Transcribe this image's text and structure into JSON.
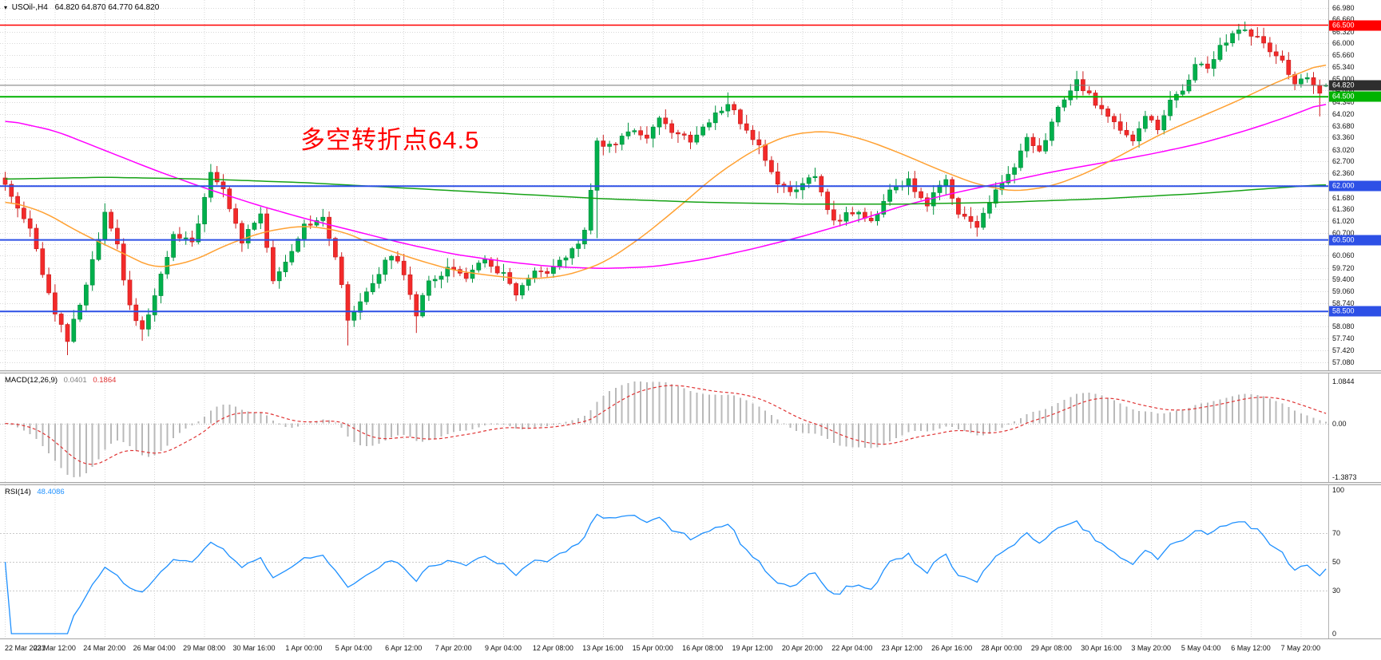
{
  "header": {
    "marker": "▾",
    "title": "USOil-,H4",
    "ohlc": "64.820 64.870 64.770 64.820"
  },
  "annotation": {
    "text": "多空转折点64.5",
    "color": "#ff0000"
  },
  "colors": {
    "background": "#ffffff",
    "grid": "#d8d8d8",
    "axis_border": "#b2b2b2",
    "text": "#111111",
    "candle_up": "#00b04c",
    "candle_up_border": "#00913e",
    "candle_down": "#f32a2a",
    "candle_down_border": "#cc1f1f",
    "macd_hist": "#b9b9b9",
    "macd_signal": "#e03333",
    "rsi_line": "#1e90ff",
    "rsi_levels": "#c9c9c9"
  },
  "chart_data": {
    "type": "candlestick",
    "symbol": "USOil-",
    "timeframe": "H4",
    "current_candle": {
      "open": 64.82,
      "high": 64.87,
      "low": 64.77,
      "close": 64.82
    },
    "candle_count": 213,
    "candles_per_label": 8,
    "x_labels": [
      "22 Mar 2021",
      "23 Mar 12:00",
      "24 Mar 20:00",
      "26 Mar 04:00",
      "29 Mar 08:00",
      "30 Mar 16:00",
      "1 Apr 00:00",
      "5 Apr 04:00",
      "6 Apr 12:00",
      "7 Apr 20:00",
      "9 Apr 04:00",
      "12 Apr 08:00",
      "13 Apr 16:00",
      "15 Apr 00:00",
      "16 Apr 08:00",
      "19 Apr 12:00",
      "20 Apr 20:00",
      "22 Apr 04:00",
      "23 Apr 12:00",
      "26 Apr 16:00",
      "28 Apr 00:00",
      "29 Apr 08:00",
      "30 Apr 16:00",
      "3 May 20:00",
      "5 May 04:00",
      "6 May 12:00",
      "7 May 20:00"
    ],
    "price_axis": {
      "max_tick": 66.98,
      "min_tick": 57.08,
      "ticks": [
        66.98,
        66.66,
        66.32,
        66.0,
        65.66,
        65.34,
        65.0,
        64.68,
        64.34,
        64.02,
        63.68,
        63.36,
        63.02,
        62.7,
        62.36,
        62.04,
        61.68,
        61.36,
        61.02,
        60.7,
        60.38,
        60.06,
        59.72,
        59.4,
        59.06,
        58.74,
        58.4,
        58.08,
        57.74,
        57.42,
        57.08
      ]
    },
    "price_waypoints": [
      [
        0,
        62.05
      ],
      [
        2,
        61.4
      ],
      [
        4,
        60.9
      ],
      [
        6,
        59.6
      ],
      [
        8,
        58.4
      ],
      [
        10,
        57.7
      ],
      [
        13,
        59.2
      ],
      [
        16,
        61.2
      ],
      [
        18,
        60.3
      ],
      [
        20,
        58.6
      ],
      [
        22,
        57.95
      ],
      [
        24,
        58.9
      ],
      [
        27,
        60.6
      ],
      [
        30,
        60.4
      ],
      [
        33,
        62.3
      ],
      [
        35,
        61.9
      ],
      [
        38,
        60.45
      ],
      [
        41,
        61.3
      ],
      [
        43,
        59.4
      ],
      [
        45,
        59.9
      ],
      [
        48,
        60.95
      ],
      [
        51,
        61.05
      ],
      [
        53,
        60.1
      ],
      [
        55,
        58.25
      ],
      [
        58,
        59.1
      ],
      [
        62,
        60.1
      ],
      [
        64,
        59.6
      ],
      [
        66,
        58.45
      ],
      [
        68,
        59.3
      ],
      [
        71,
        59.7
      ],
      [
        74,
        59.5
      ],
      [
        77,
        59.9
      ],
      [
        80,
        59.5
      ],
      [
        82,
        58.95
      ],
      [
        85,
        59.55
      ],
      [
        88,
        59.7
      ],
      [
        91,
        60.2
      ],
      [
        93,
        60.7
      ],
      [
        95,
        63.2
      ],
      [
        98,
        63.2
      ],
      [
        100,
        63.55
      ],
      [
        103,
        63.4
      ],
      [
        105,
        63.95
      ],
      [
        107,
        63.5
      ],
      [
        110,
        63.3
      ],
      [
        113,
        63.8
      ],
      [
        116,
        64.35
      ],
      [
        118,
        63.8
      ],
      [
        121,
        63.1
      ],
      [
        124,
        62.1
      ],
      [
        127,
        61.85
      ],
      [
        130,
        62.3
      ],
      [
        133,
        61.0
      ],
      [
        136,
        61.3
      ],
      [
        139,
        61.0
      ],
      [
        142,
        61.9
      ],
      [
        145,
        62.15
      ],
      [
        148,
        61.5
      ],
      [
        151,
        62.2
      ],
      [
        153,
        61.3
      ],
      [
        156,
        60.85
      ],
      [
        159,
        61.9
      ],
      [
        162,
        62.5
      ],
      [
        164,
        63.3
      ],
      [
        166,
        62.9
      ],
      [
        169,
        64.2
      ],
      [
        172,
        64.9
      ],
      [
        175,
        64.35
      ],
      [
        178,
        63.75
      ],
      [
        181,
        63.35
      ],
      [
        183,
        64.0
      ],
      [
        185,
        63.6
      ],
      [
        187,
        64.35
      ],
      [
        189,
        64.7
      ],
      [
        191,
        65.35
      ],
      [
        193,
        65.3
      ],
      [
        195,
        65.9
      ],
      [
        197,
        66.25
      ],
      [
        199,
        66.35
      ],
      [
        201,
        66.15
      ],
      [
        203,
        65.8
      ],
      [
        205,
        65.5
      ],
      [
        207,
        64.85
      ],
      [
        209,
        65.0
      ],
      [
        211,
        64.55
      ],
      [
        212,
        64.82
      ]
    ],
    "wick_overrides": {
      "10": {
        "low": 57.28
      },
      "22": {
        "low": 57.68
      },
      "33": {
        "high": 62.62
      },
      "55": {
        "low": 57.55
      },
      "66": {
        "low": 57.9
      },
      "95": {
        "low": 60.55
      },
      "116": {
        "high": 64.62
      },
      "199": {
        "high": 66.6
      },
      "211": {
        "low": 63.95
      }
    },
    "ma_lines": [
      {
        "name": "ma-magenta",
        "color": "#ff00ff",
        "points": [
          [
            0,
            63.85
          ],
          [
            8,
            63.55
          ],
          [
            16,
            63.0
          ],
          [
            24,
            62.45
          ],
          [
            32,
            61.95
          ],
          [
            40,
            61.5
          ],
          [
            48,
            61.1
          ],
          [
            56,
            60.75
          ],
          [
            64,
            60.4
          ],
          [
            72,
            60.1
          ],
          [
            80,
            59.9
          ],
          [
            88,
            59.75
          ],
          [
            96,
            59.7
          ],
          [
            104,
            59.75
          ],
          [
            112,
            59.95
          ],
          [
            120,
            60.25
          ],
          [
            128,
            60.6
          ],
          [
            136,
            61.0
          ],
          [
            144,
            61.45
          ],
          [
            152,
            61.8
          ],
          [
            160,
            62.1
          ],
          [
            168,
            62.4
          ],
          [
            176,
            62.65
          ],
          [
            184,
            62.9
          ],
          [
            192,
            63.2
          ],
          [
            200,
            63.6
          ],
          [
            206,
            63.95
          ],
          [
            212,
            64.35
          ]
        ]
      },
      {
        "name": "ma-orange",
        "color": "#ffa133",
        "points": [
          [
            0,
            61.6
          ],
          [
            6,
            61.3
          ],
          [
            12,
            60.7
          ],
          [
            18,
            60.2
          ],
          [
            24,
            59.7
          ],
          [
            30,
            59.9
          ],
          [
            36,
            60.4
          ],
          [
            42,
            60.75
          ],
          [
            48,
            60.9
          ],
          [
            54,
            60.75
          ],
          [
            60,
            60.3
          ],
          [
            66,
            59.95
          ],
          [
            72,
            59.65
          ],
          [
            78,
            59.5
          ],
          [
            84,
            59.4
          ],
          [
            90,
            59.5
          ],
          [
            96,
            59.85
          ],
          [
            102,
            60.55
          ],
          [
            108,
            61.4
          ],
          [
            114,
            62.3
          ],
          [
            120,
            63.0
          ],
          [
            126,
            63.45
          ],
          [
            132,
            63.55
          ],
          [
            138,
            63.3
          ],
          [
            144,
            62.9
          ],
          [
            150,
            62.45
          ],
          [
            156,
            62.05
          ],
          [
            162,
            61.85
          ],
          [
            168,
            62.0
          ],
          [
            174,
            62.4
          ],
          [
            180,
            62.95
          ],
          [
            186,
            63.5
          ],
          [
            192,
            63.95
          ],
          [
            198,
            64.4
          ],
          [
            204,
            64.9
          ],
          [
            209,
            65.25
          ],
          [
            212,
            65.45
          ]
        ]
      },
      {
        "name": "ma-green",
        "color": "#16a216",
        "points": [
          [
            0,
            62.2
          ],
          [
            16,
            62.25
          ],
          [
            32,
            62.2
          ],
          [
            48,
            62.1
          ],
          [
            64,
            61.95
          ],
          [
            80,
            61.8
          ],
          [
            96,
            61.65
          ],
          [
            112,
            61.55
          ],
          [
            128,
            61.5
          ],
          [
            144,
            61.5
          ],
          [
            160,
            61.55
          ],
          [
            176,
            61.65
          ],
          [
            192,
            61.8
          ],
          [
            204,
            61.95
          ],
          [
            212,
            62.05
          ]
        ]
      }
    ],
    "levels": [
      {
        "value": 66.5,
        "label": "66.500",
        "color": "#ff0000",
        "width": 1.4
      },
      {
        "value": 64.5,
        "label": "64.500",
        "color": "#00b300",
        "width": 2
      },
      {
        "value": 62.0,
        "label": "62.000",
        "color": "#2d50e6",
        "width": 2
      },
      {
        "value": 60.5,
        "label": "60.500",
        "color": "#2d50e6",
        "width": 2
      },
      {
        "value": 58.5,
        "label": "58.500",
        "color": "#2d50e6",
        "width": 2
      }
    ],
    "current_price": {
      "value": 64.82,
      "label": "64.820",
      "color": "#2e2e2e"
    },
    "macd": {
      "label": "MACD(12,26,9)",
      "value_main": "0.0401",
      "value_signal": "0.1864",
      "params": [
        12,
        26,
        9
      ],
      "axis_labels": [
        "1.0844",
        "0.00",
        "-1.3873"
      ],
      "axis_values": [
        1.0844,
        0,
        -1.3873
      ]
    },
    "rsi": {
      "label": "RSI(14)",
      "value": "48.4086",
      "period": 14,
      "axis_labels": [
        "100",
        "70",
        "50",
        "30",
        "0"
      ],
      "levels": [
        70,
        50,
        30
      ]
    }
  }
}
